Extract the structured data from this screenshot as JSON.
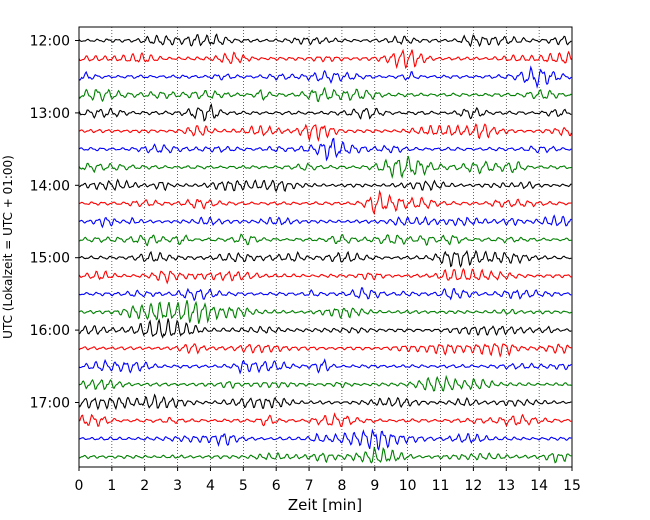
{
  "chart_data": {
    "type": "line",
    "title": "",
    "xlabel": "Zeit  [min]",
    "ylabel": "UTC (Lokalzeit = UTC + 01:00)",
    "xlim": [
      0,
      15
    ],
    "x_ticks": [
      "0",
      "1",
      "2",
      "3",
      "4",
      "5",
      "6",
      "7",
      "8",
      "9",
      "10",
      "11",
      "12",
      "13",
      "14",
      "15"
    ],
    "y_ticks": [
      "12:00",
      "13:00",
      "14:00",
      "15:00",
      "16:00",
      "17:00"
    ],
    "trace_interval_min": 15,
    "trace_count": 24,
    "start_time": "12:00",
    "trace_colors": [
      "#000000",
      "#ff0000",
      "#0000ff",
      "#008000"
    ],
    "grid": "vertical dotted"
  }
}
